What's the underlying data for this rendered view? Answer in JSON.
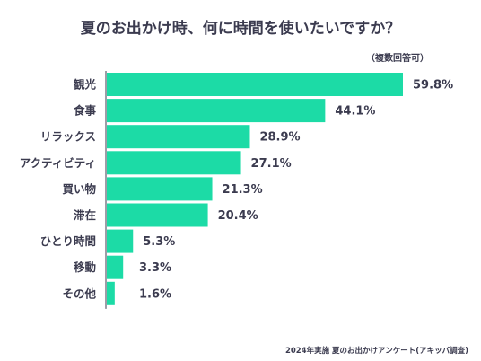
{
  "title": "夏のお出かけ時、何に時間を使いたいですか？",
  "note": "（複数回答可）",
  "footer": "2024年実施 夏のお出かけアンケート(アキッパ調査)",
  "colors": {
    "bar": "#1cdba6",
    "axis": "#3b3b4f",
    "text": "#3b3b4f"
  },
  "chart_data": {
    "type": "bar",
    "orientation": "horizontal",
    "title": "夏のお出かけ時、何に時間を使いたいですか？",
    "subtitle": "（複数回答可）",
    "unit": "%",
    "categories": [
      "観光",
      "食事",
      "リラックス",
      "アクティビティ",
      "買い物",
      "滞在",
      "ひとり時間",
      "移動",
      "その他"
    ],
    "values": [
      59.8,
      44.1,
      28.9,
      27.1,
      21.3,
      20.4,
      5.3,
      3.3,
      1.6
    ],
    "value_labels": [
      "59.8%",
      "44.1%",
      "28.9%",
      "27.1%",
      "21.3%",
      "20.4%",
      "5.3%",
      "3.3%",
      "1.6%"
    ],
    "xlim": [
      0,
      59.8
    ],
    "grid": false,
    "legend": "none"
  }
}
